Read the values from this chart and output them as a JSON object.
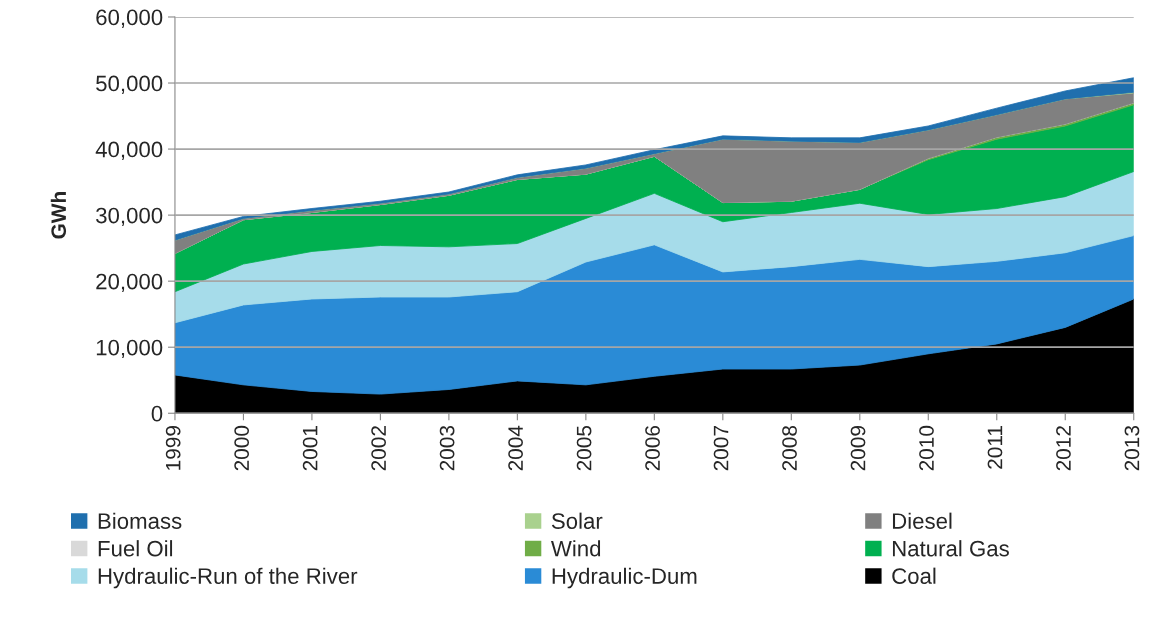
{
  "chart_data": {
    "type": "area",
    "stacked": true,
    "ylabel": "GWh",
    "categories": [
      "1999",
      "2000",
      "2001",
      "2002",
      "2003",
      "2004",
      "2005",
      "2006",
      "2007",
      "2008",
      "2009",
      "2010",
      "2011",
      "2012",
      "2013"
    ],
    "ylim": [
      0,
      60000
    ],
    "yticks": [
      {
        "value": 0,
        "label": "0"
      },
      {
        "value": 10000,
        "label": "10,000"
      },
      {
        "value": 20000,
        "label": "20,000"
      },
      {
        "value": 30000,
        "label": "30,000"
      },
      {
        "value": 40000,
        "label": "40,000"
      },
      {
        "value": 50000,
        "label": "50,000"
      },
      {
        "value": 60000,
        "label": "60,000"
      }
    ],
    "grid": "y",
    "legend": "bottom",
    "series": [
      {
        "name": "Coal",
        "color": "#000000",
        "values": [
          5800,
          4300,
          3300,
          2900,
          3600,
          4900,
          4300,
          5600,
          6700,
          6700,
          7300,
          9000,
          10500,
          13000,
          17300
        ]
      },
      {
        "name": "Hydraulic-Dum",
        "color": "#2a8bd6",
        "values": [
          7900,
          12100,
          14000,
          14700,
          14000,
          13500,
          18600,
          19900,
          14700,
          15500,
          16000,
          13200,
          12500,
          11300,
          9600
        ]
      },
      {
        "name": "Hydraulic-Run of the River",
        "color": "#a6dcea",
        "values": [
          4700,
          6200,
          7200,
          7800,
          7600,
          7300,
          6600,
          7800,
          7600,
          8200,
          8500,
          7900,
          8000,
          8500,
          9700
        ]
      },
      {
        "name": "Natural Gas",
        "color": "#00b050",
        "values": [
          5800,
          6700,
          5900,
          6200,
          7800,
          9700,
          6700,
          5600,
          2900,
          1700,
          2100,
          8300,
          10500,
          10700,
          10100
        ]
      },
      {
        "name": "Wind",
        "color": "#70ad47",
        "values": [
          0,
          0,
          0,
          0,
          0,
          0,
          0,
          0,
          0,
          0,
          0,
          200,
          300,
          300,
          300
        ]
      },
      {
        "name": "Fuel Oil",
        "color": "#d9d9d9",
        "values": [
          null,
          null,
          null,
          null,
          null,
          null,
          null,
          null,
          null,
          null,
          null,
          null,
          null,
          null,
          null
        ]
      },
      {
        "name": "Diesel",
        "color": "#808080",
        "values": [
          2000,
          200,
          300,
          200,
          200,
          300,
          900,
          400,
          9600,
          9100,
          7100,
          4300,
          3400,
          3800,
          1500
        ]
      },
      {
        "name": "Solar",
        "color": "#a9d18e",
        "values": [
          0,
          0,
          0,
          0,
          0,
          0,
          0,
          0,
          0,
          0,
          0,
          0,
          0,
          0,
          100
        ]
      },
      {
        "name": "Biomass",
        "color": "#1f6fae",
        "values": [
          800,
          300,
          300,
          300,
          300,
          400,
          500,
          600,
          500,
          500,
          700,
          600,
          1000,
          1200,
          2200
        ]
      }
    ]
  }
}
